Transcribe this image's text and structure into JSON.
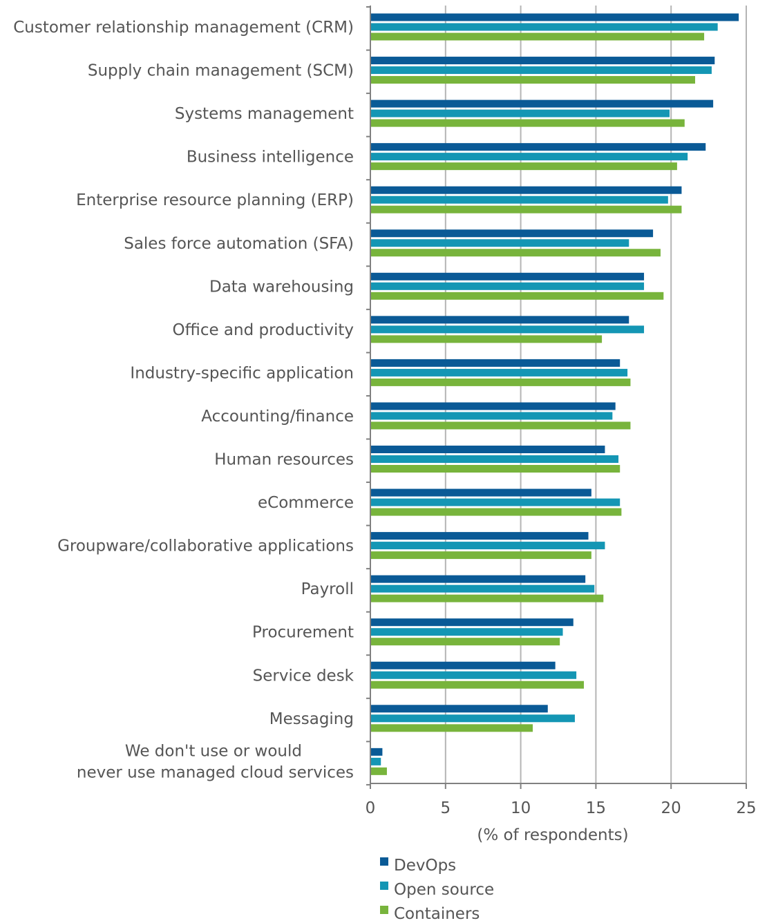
{
  "chart_data": {
    "type": "bar",
    "orientation": "horizontal",
    "categories": [
      [
        "Customer relationship management (CRM)"
      ],
      [
        "Supply chain management (SCM)"
      ],
      [
        "Systems management"
      ],
      [
        "Business intelligence"
      ],
      [
        "Enterprise resource planning (ERP)"
      ],
      [
        "Sales force automation (SFA)"
      ],
      [
        "Data warehousing"
      ],
      [
        "Office and productivity"
      ],
      [
        "Industry-specific application"
      ],
      [
        "Accounting/finance"
      ],
      [
        "Human resources"
      ],
      [
        "eCommerce"
      ],
      [
        "Groupware/collaborative applications"
      ],
      [
        "Payroll"
      ],
      [
        "Procurement"
      ],
      [
        "Service desk"
      ],
      [
        "Messaging"
      ],
      [
        "We don't use or would",
        "never use managed cloud services"
      ]
    ],
    "series": [
      {
        "name": "DevOps",
        "color": "#0a5a96",
        "values": [
          24.5,
          22.9,
          22.8,
          22.3,
          20.7,
          18.8,
          18.2,
          17.2,
          16.6,
          16.3,
          15.6,
          14.7,
          14.5,
          14.3,
          13.5,
          12.3,
          11.8,
          0.8
        ]
      },
      {
        "name": "Open source",
        "color": "#1496b4",
        "values": [
          23.1,
          22.7,
          19.9,
          21.1,
          19.8,
          17.2,
          18.2,
          18.2,
          17.1,
          16.1,
          16.5,
          16.6,
          15.6,
          14.9,
          12.8,
          13.7,
          13.6,
          0.7
        ]
      },
      {
        "name": "Containers",
        "color": "#78b43c",
        "values": [
          22.2,
          21.6,
          20.9,
          20.4,
          20.7,
          19.3,
          19.5,
          15.4,
          17.3,
          17.3,
          16.6,
          16.7,
          14.7,
          15.5,
          12.6,
          14.2,
          10.8,
          1.1
        ]
      }
    ],
    "xlabel": "(% of respondents)",
    "ylabel": "",
    "xlim": [
      0,
      25
    ],
    "xticks": [
      "0",
      "5",
      "10",
      "15",
      "20",
      "25"
    ],
    "grid": true,
    "legend_position": "bottom"
  }
}
